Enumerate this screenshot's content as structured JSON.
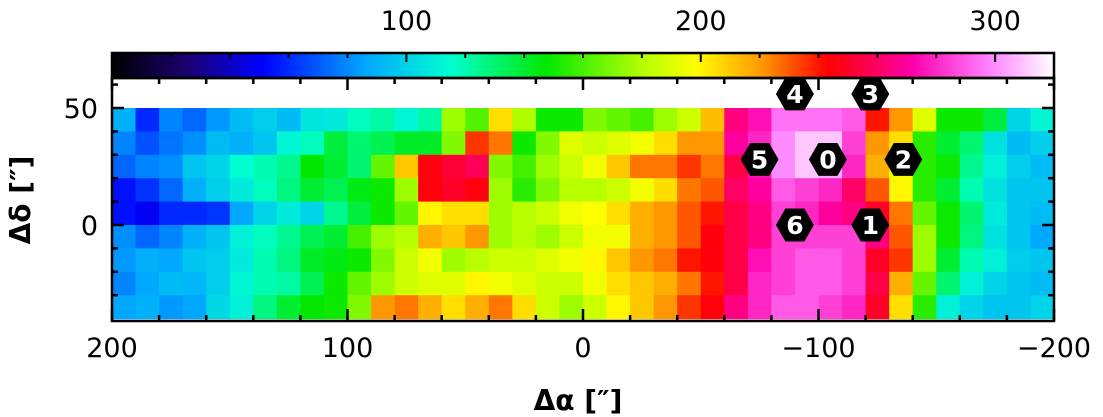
{
  "chart_data": {
    "type": "heatmap",
    "title": "",
    "xlabel": "Δα [″]",
    "ylabel": "Δδ [″]",
    "xlim": [
      200,
      -200
    ],
    "ylim": [
      -40,
      50
    ],
    "x_ticks": [
      200,
      100,
      0,
      -100,
      -200
    ],
    "x_tick_labels": [
      "200",
      "100",
      "0",
      "−100",
      "−200"
    ],
    "y_ticks": [
      0,
      50
    ],
    "y_tick_labels": [
      "0",
      "50"
    ],
    "colorbar": {
      "orientation": "horizontal",
      "location": "top",
      "range": [
        0,
        320
      ],
      "ticks": [
        100,
        200,
        300
      ],
      "tick_labels": [
        "100",
        "200",
        "300"
      ]
    },
    "grid": false,
    "cell_size_arcsec": 10,
    "x_centers": [
      195,
      185,
      175,
      165,
      155,
      145,
      135,
      125,
      115,
      105,
      95,
      85,
      75,
      65,
      55,
      45,
      35,
      25,
      15,
      5,
      -5,
      -15,
      -25,
      -35,
      -45,
      -55,
      -65,
      -75,
      -85,
      -95,
      -105,
      -115,
      -125,
      -135,
      -145,
      -155,
      -165,
      -175,
      -185,
      -195
    ],
    "y_centers": [
      45,
      35,
      25,
      15,
      5,
      -5,
      -15,
      -25,
      -35
    ],
    "z": [
      [
        88,
        60,
        78,
        72,
        82,
        92,
        98,
        92,
        106,
        108,
        118,
        122,
        112,
        122,
        175,
        162,
        205,
        178,
        150,
        150,
        170,
        165,
        160,
        175,
        185,
        212,
        265,
        275,
        295,
        295,
        295,
        290,
        240,
        220,
        190,
        150,
        150,
        138,
        100,
        112
      ],
      [
        78,
        68,
        75,
        80,
        92,
        88,
        95,
        112,
        118,
        138,
        130,
        135,
        142,
        142,
        170,
        235,
        225,
        150,
        170,
        190,
        185,
        190,
        195,
        205,
        220,
        220,
        270,
        280,
        300,
        310,
        310,
        285,
        220,
        205,
        155,
        140,
        130,
        105,
        92,
        98
      ],
      [
        72,
        78,
        80,
        95,
        100,
        115,
        120,
        125,
        148,
        140,
        130,
        165,
        210,
        245,
        252,
        258,
        170,
        160,
        175,
        185,
        195,
        210,
        225,
        225,
        235,
        225,
        255,
        275,
        300,
        310,
        305,
        280,
        215,
        195,
        155,
        150,
        125,
        110,
        98,
        92
      ],
      [
        55,
        62,
        72,
        88,
        98,
        108,
        118,
        128,
        140,
        135,
        145,
        150,
        175,
        245,
        250,
        245,
        175,
        155,
        170,
        180,
        180,
        185,
        195,
        205,
        225,
        230,
        260,
        270,
        290,
        285,
        280,
        260,
        230,
        200,
        155,
        140,
        120,
        105,
        95,
        95
      ],
      [
        55,
        50,
        60,
        60,
        62,
        85,
        100,
        108,
        100,
        125,
        138,
        150,
        165,
        200,
        205,
        205,
        175,
        180,
        185,
        195,
        198,
        205,
        215,
        220,
        230,
        240,
        255,
        265,
        285,
        280,
        270,
        265,
        250,
        225,
        165,
        150,
        130,
        108,
        95,
        92
      ],
      [
        80,
        72,
        78,
        88,
        95,
        110,
        118,
        125,
        135,
        140,
        160,
        175,
        180,
        215,
        210,
        220,
        175,
        180,
        175,
        185,
        195,
        195,
        215,
        220,
        230,
        245,
        255,
        265,
        285,
        285,
        285,
        285,
        265,
        230,
        175,
        150,
        128,
        105,
        95,
        85
      ],
      [
        82,
        88,
        85,
        95,
        98,
        108,
        120,
        128,
        142,
        145,
        150,
        170,
        185,
        195,
        175,
        180,
        185,
        185,
        190,
        195,
        200,
        210,
        220,
        225,
        240,
        245,
        255,
        275,
        285,
        290,
        290,
        285,
        250,
        235,
        175,
        140,
        120,
        110,
        98,
        95
      ],
      [
        78,
        85,
        92,
        90,
        98,
        112,
        120,
        122,
        135,
        150,
        165,
        175,
        185,
        190,
        190,
        200,
        195,
        190,
        185,
        185,
        195,
        205,
        210,
        215,
        225,
        240,
        255,
        280,
        285,
        290,
        290,
        285,
        255,
        215,
        165,
        130,
        110,
        100,
        95,
        92
      ],
      [
        85,
        88,
        82,
        85,
        102,
        110,
        128,
        140,
        148,
        150,
        170,
        220,
        225,
        215,
        205,
        215,
        225,
        205,
        185,
        175,
        185,
        200,
        210,
        220,
        235,
        245,
        265,
        280,
        290,
        290,
        285,
        280,
        250,
        205,
        155,
        110,
        100,
        95,
        95,
        100
      ]
    ],
    "markers": [
      {
        "label": "0",
        "x": -104,
        "y": 28
      },
      {
        "label": "1",
        "x": -122,
        "y": 0
      },
      {
        "label": "2",
        "x": -136,
        "y": 28
      },
      {
        "label": "3",
        "x": -122,
        "y": 56
      },
      {
        "label": "4",
        "x": -90,
        "y": 56
      },
      {
        "label": "5",
        "x": -75,
        "y": 28
      },
      {
        "label": "6",
        "x": -90,
        "y": 0
      }
    ]
  }
}
